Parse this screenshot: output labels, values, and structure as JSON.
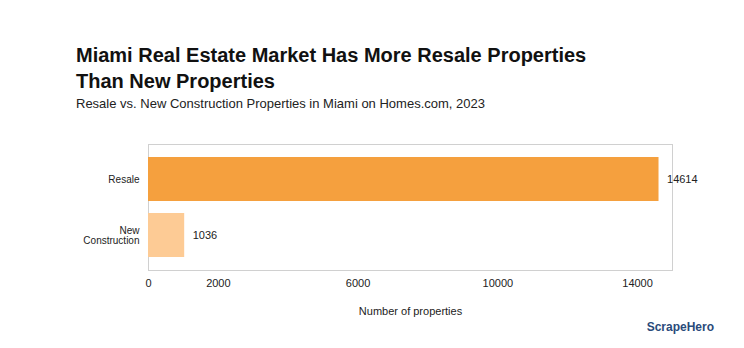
{
  "chart_data": {
    "type": "bar",
    "orientation": "horizontal",
    "title": "Miami Real Estate Market Has More Resale Properties Than New Properties",
    "subtitle": "Resale vs. New Construction Properties in Miami on Homes.com, 2023",
    "x_label": "Number of properties",
    "annotation": "ScrapeHero",
    "categories": [
      "Resale",
      "New Construction"
    ],
    "values": [
      14614,
      1036
    ],
    "colors": [
      "#f5a03e",
      "#fdcb95"
    ],
    "xlim": [
      0,
      15000
    ],
    "xticks": [
      0,
      2000,
      6000,
      10000,
      14000
    ],
    "grid": false,
    "data_labels": true
  }
}
